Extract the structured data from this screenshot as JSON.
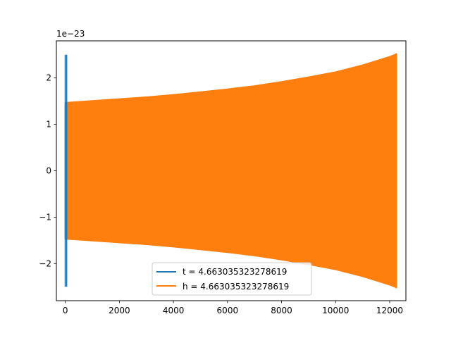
{
  "chart_data": {
    "type": "line",
    "offset_text": "1e−23",
    "xlim": [
      -330,
      12600
    ],
    "ylim": [
      -2.8,
      2.8
    ],
    "grid": false,
    "legend_location": "bottom-center",
    "x_ticks": [
      0,
      2000,
      4000,
      6000,
      8000,
      10000,
      12000
    ],
    "y_ticks": [
      -2,
      -1,
      0,
      1,
      2
    ],
    "x_tick_labels": [
      "0",
      "2000",
      "4000",
      "6000",
      "8000",
      "10000",
      "12000"
    ],
    "y_tick_labels": [
      "−2",
      "−1",
      "0",
      "1",
      "2"
    ],
    "series": [
      {
        "name": "t = 4.663035323278619",
        "color": "#1f77b4",
        "x_start": 0,
        "x_end": 30,
        "amplitude": 2.5
      },
      {
        "name": "h = 4.663035323278619",
        "color": "#ff7f0e",
        "envelope": {
          "x": [
            0,
            1000,
            2000,
            3000,
            4000,
            5000,
            6000,
            7000,
            8000,
            9000,
            10000,
            11000,
            11500,
            12000,
            12250
          ],
          "upper": [
            1.47,
            1.51,
            1.55,
            1.59,
            1.64,
            1.7,
            1.76,
            1.83,
            1.92,
            2.02,
            2.13,
            2.28,
            2.37,
            2.46,
            2.52
          ],
          "lower": [
            -1.47,
            -1.51,
            -1.55,
            -1.59,
            -1.64,
            -1.7,
            -1.76,
            -1.83,
            -1.92,
            -2.02,
            -2.13,
            -2.28,
            -2.37,
            -2.46,
            -2.52
          ]
        }
      }
    ]
  }
}
